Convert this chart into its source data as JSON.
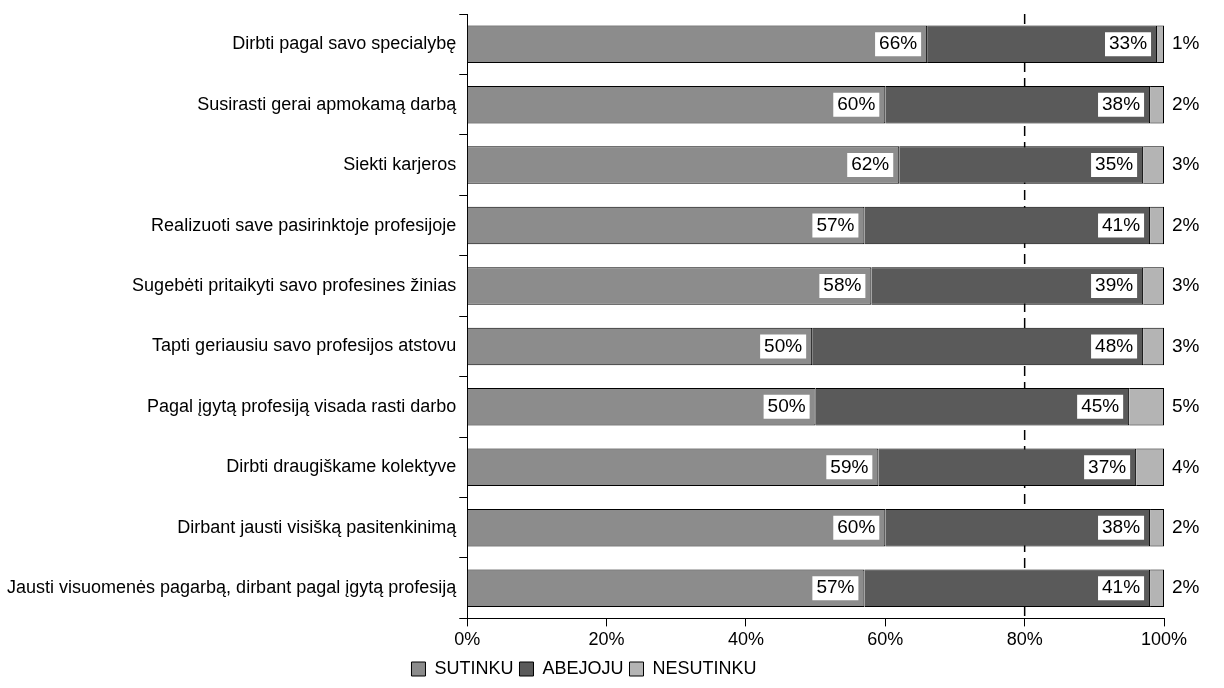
{
  "chart_data": {
    "type": "bar",
    "orientation": "horizontal",
    "stacked": true,
    "categories": [
      "Dirbti pagal savo specialybę",
      "Susirasti gerai apmokamą darbą",
      "Siekti karjeros",
      "Realizuoti save pasirinktoje profesijoje",
      "Sugebėti pritaikyti savo profesines žinias",
      "Tapti geriausiu savo profesijos atstovu",
      "Pagal įgytą profesiją visada rasti darbo",
      "Dirbti draugiškame kolektyve",
      "Dirbant jausti visišką pasitenkinimą",
      "Jausti visuomenės pagarbą, dirbant pagal įgytą profesiją"
    ],
    "series": [
      {
        "name": "SUTINKU",
        "color": "#8c8c8c",
        "values": [
          66,
          60,
          62,
          57,
          58,
          49.5,
          50,
          59,
          60,
          57
        ],
        "value_labels": [
          "66%",
          "60%",
          "62%",
          "57%",
          "58%",
          "50%",
          "50%",
          "59%",
          "60%",
          "57%"
        ]
      },
      {
        "name": "ABEJOJU",
        "color": "#5a5a5a",
        "values": [
          33,
          38,
          35,
          41,
          39,
          47.5,
          45,
          37,
          38,
          41
        ],
        "value_labels": [
          "33%",
          "38%",
          "35%",
          "41%",
          "39%",
          "48%",
          "45%",
          "37%",
          "38%",
          "41%"
        ]
      },
      {
        "name": "NESUTINKU",
        "color": "#b4b4b4",
        "values": [
          1,
          2,
          3,
          2,
          3,
          3,
          5,
          4,
          2,
          2
        ],
        "value_labels": [
          "1%",
          "2%",
          "3%",
          "2%",
          "3%",
          "3%",
          "5%",
          "4%",
          "2%",
          "2%"
        ]
      }
    ],
    "xlim": [
      0,
      100
    ],
    "xticks": [
      {
        "value": 0,
        "label": "0%"
      },
      {
        "value": 20,
        "label": "20%"
      },
      {
        "value": 40,
        "label": "40%"
      },
      {
        "value": 60,
        "label": "60%"
      },
      {
        "value": 80,
        "label": "80%"
      },
      {
        "value": 100,
        "label": "100%"
      }
    ],
    "ref_lines": [
      {
        "axis": "x",
        "value": 80,
        "color": "#000000",
        "line_style": "dashed"
      }
    ],
    "legend": "bottom"
  }
}
